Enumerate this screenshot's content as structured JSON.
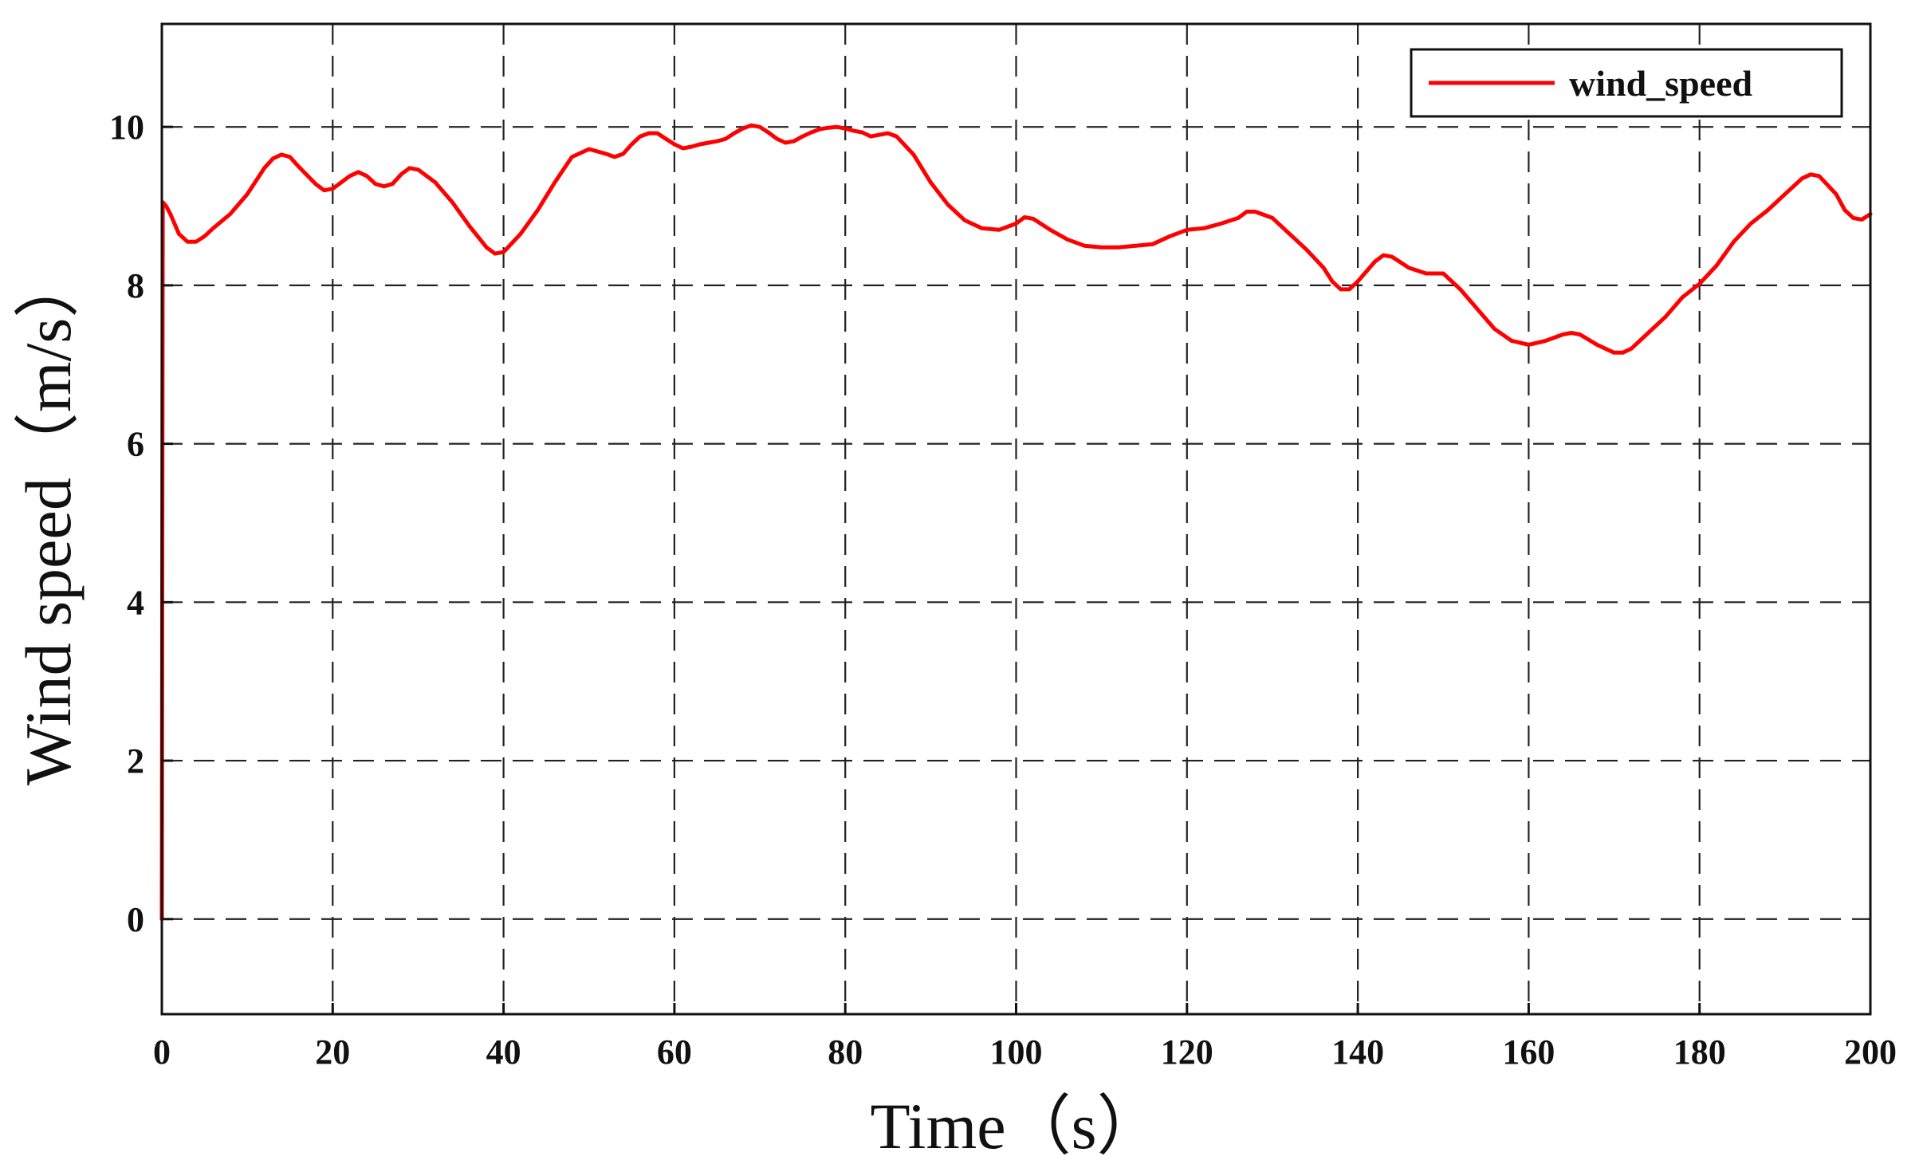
{
  "chart_data": {
    "type": "line",
    "title": "",
    "xlabel": "Time（s）",
    "ylabel": "Wind speed（m/s）",
    "xlim": [
      0,
      200
    ],
    "ylim": [
      -1.2,
      11.3
    ],
    "x_ticks": [
      0,
      20,
      40,
      60,
      80,
      100,
      120,
      140,
      160,
      180,
      200
    ],
    "y_ticks": [
      0,
      2,
      4,
      6,
      8,
      10
    ],
    "x_tick_labels": [
      "0",
      "20",
      "40",
      "60",
      "80",
      "100",
      "120",
      "140",
      "160",
      "180",
      "200"
    ],
    "y_tick_labels": [
      "0",
      "2",
      "4",
      "6",
      "8",
      "10"
    ],
    "grid": true,
    "grid_style": "dashed",
    "legend_position": "top-right",
    "series": [
      {
        "name": "wind_speed",
        "color": "#ff0000",
        "x": [
          0,
          0.1,
          0.5,
          1,
          2,
          3,
          4,
          5,
          6,
          8,
          10,
          12,
          13,
          14,
          15,
          16,
          18,
          19,
          20,
          22,
          23,
          24,
          25,
          26,
          27,
          28,
          29,
          30,
          32,
          34,
          36,
          38,
          39,
          40,
          42,
          44,
          46,
          48,
          50,
          52,
          53,
          54,
          55,
          56,
          57,
          58,
          59,
          60,
          61,
          62,
          63,
          64,
          65,
          66,
          67,
          68,
          69,
          70,
          71,
          72,
          73,
          74,
          75,
          76,
          77,
          78,
          79,
          80,
          81,
          82,
          83,
          84,
          85,
          86,
          88,
          90,
          92,
          94,
          96,
          98,
          100,
          101,
          102,
          104,
          106,
          108,
          110,
          112,
          114,
          116,
          118,
          120,
          122,
          124,
          126,
          127,
          128,
          130,
          132,
          134,
          136,
          137,
          138,
          139,
          140,
          142,
          143,
          144,
          146,
          148,
          150,
          152,
          154,
          156,
          158,
          160,
          162,
          164,
          165,
          166,
          168,
          170,
          171,
          172,
          174,
          176,
          178,
          180,
          182,
          184,
          186,
          188,
          190,
          192,
          193,
          194,
          196,
          197,
          198,
          199,
          200
        ],
        "values": [
          0,
          9.05,
          9.0,
          8.9,
          8.65,
          8.55,
          8.55,
          8.62,
          8.72,
          8.9,
          9.15,
          9.48,
          9.6,
          9.65,
          9.62,
          9.5,
          9.28,
          9.2,
          9.22,
          9.38,
          9.43,
          9.38,
          9.28,
          9.25,
          9.28,
          9.4,
          9.48,
          9.46,
          9.3,
          9.05,
          8.75,
          8.48,
          8.4,
          8.42,
          8.65,
          8.95,
          9.3,
          9.62,
          9.72,
          9.66,
          9.62,
          9.66,
          9.78,
          9.88,
          9.92,
          9.92,
          9.85,
          9.78,
          9.73,
          9.75,
          9.78,
          9.8,
          9.82,
          9.85,
          9.92,
          9.98,
          10.02,
          10.0,
          9.93,
          9.85,
          9.8,
          9.82,
          9.88,
          9.93,
          9.97,
          9.99,
          10.0,
          9.98,
          9.95,
          9.93,
          9.88,
          9.9,
          9.92,
          9.88,
          9.65,
          9.3,
          9.02,
          8.82,
          8.72,
          8.7,
          8.78,
          8.86,
          8.84,
          8.7,
          8.58,
          8.5,
          8.48,
          8.48,
          8.5,
          8.52,
          8.62,
          8.7,
          8.72,
          8.78,
          8.85,
          8.93,
          8.93,
          8.85,
          8.65,
          8.45,
          8.22,
          8.05,
          7.95,
          7.95,
          8.05,
          8.3,
          8.38,
          8.36,
          8.22,
          8.15,
          8.15,
          7.95,
          7.7,
          7.45,
          7.3,
          7.25,
          7.3,
          7.38,
          7.4,
          7.38,
          7.25,
          7.15,
          7.15,
          7.2,
          7.4,
          7.6,
          7.85,
          8.02,
          8.25,
          8.55,
          8.78,
          8.95,
          9.15,
          9.35,
          9.4,
          9.38,
          9.15,
          8.95,
          8.85,
          8.83,
          8.9
        ]
      }
    ]
  }
}
